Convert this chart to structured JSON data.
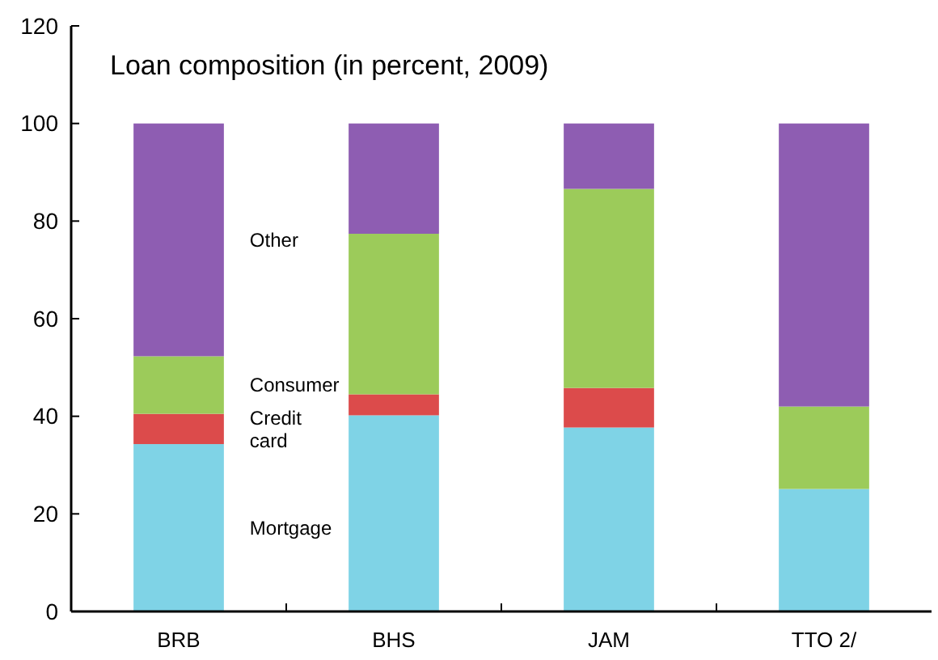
{
  "chart_data": {
    "type": "bar",
    "title": "Loan composition (in percent, 2009)",
    "categories": [
      "BRB",
      "BHS",
      "JAM",
      "TTO 2/"
    ],
    "stacked": true,
    "legend": false,
    "series": [
      {
        "name": "Mortgage",
        "color": "#7fd3e6",
        "values": [
          34.3,
          40.2,
          37.7,
          25.1
        ]
      },
      {
        "name": "Credit card",
        "color": "#dc4b4b",
        "values": [
          6.2,
          4.3,
          8.1,
          0
        ]
      },
      {
        "name": "Consumer",
        "color": "#9ccb5a",
        "values": [
          11.8,
          32.9,
          40.8,
          16.9
        ]
      },
      {
        "name": "Other",
        "color": "#8e5db2",
        "values": [
          47.7,
          22.6,
          13.4,
          58
        ]
      }
    ],
    "ylim": [
      0,
      120
    ],
    "yticks": [
      0,
      20,
      40,
      60,
      80,
      100,
      120
    ]
  }
}
